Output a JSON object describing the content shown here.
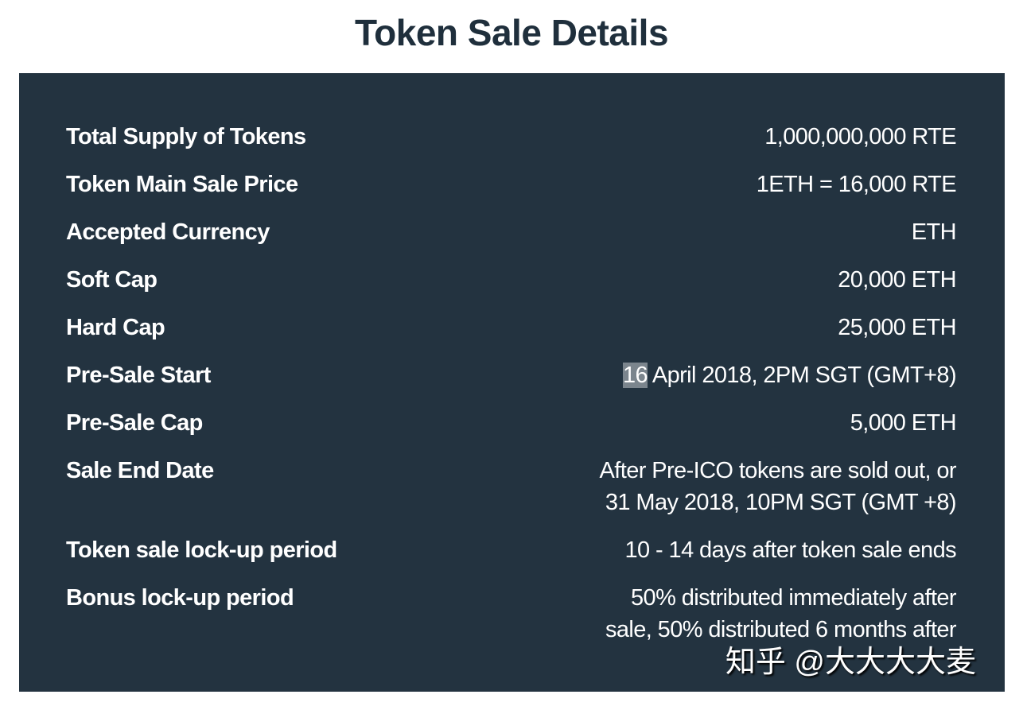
{
  "title": "Token Sale Details",
  "rows": [
    {
      "label": "Total Supply of Tokens",
      "value": "1,000,000,000 RTE"
    },
    {
      "label": "Token Main Sale Price",
      "value": "1ETH = 16,000 RTE"
    },
    {
      "label": "Accepted Currency",
      "value": "ETH"
    },
    {
      "label": "Soft Cap",
      "value": "20,000 ETH"
    },
    {
      "label": "Hard Cap",
      "value": "25,000 ETH"
    },
    {
      "label": "Pre-Sale Start",
      "value_highlight": "16",
      "value": " April 2018, 2PM SGT (GMT+8)"
    },
    {
      "label": "Pre-Sale Cap",
      "value": "5,000 ETH"
    },
    {
      "label": "Sale End Date",
      "value": "After Pre-ICO tokens are sold out, or",
      "value2": "31 May 2018, 10PM SGT (GMT +8)"
    },
    {
      "label": "Token sale lock-up period",
      "value": "10 - 14 days after token sale ends"
    },
    {
      "label": "Bonus lock-up period",
      "value": "50% distributed immediately after",
      "value2": "sale, 50% distributed 6 months after"
    }
  ],
  "watermark": "知乎 @大大大大麦"
}
